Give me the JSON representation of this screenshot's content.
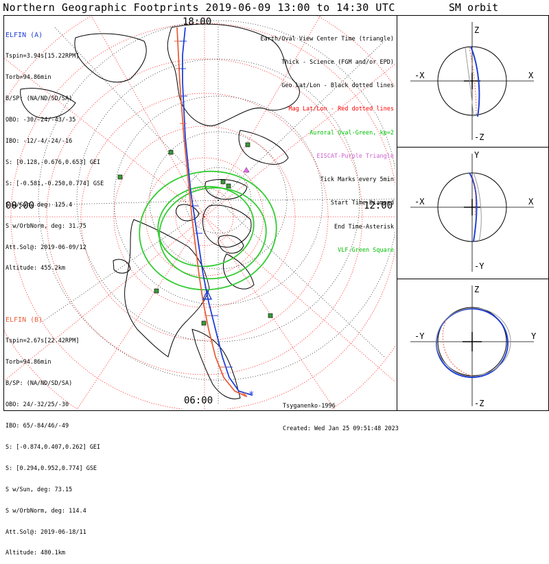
{
  "title": "Northern Geographic Footprints 2019-06-09 13:00 to 14:30 UTC",
  "sm_title": "SM orbit",
  "map": {
    "time_labels": {
      "top": "18:00",
      "left": "00:00",
      "right": "12:00",
      "bottom": "06:00"
    }
  },
  "elfin_a": {
    "name": "ELFIN (A)",
    "color": "#1f3fd6",
    "lines": [
      "Tspin=3.94s[15.22RPM]",
      "Torb=94.86min",
      "B/SP: (NA/ND/SD/SA)",
      "OBO: -30/-24/-43/-35",
      "IBO: -12/-4/-24/-16",
      "S: [0.128,-0.676,0.653] GEI",
      "S: [-0.581,-0.250,0.774] GSE",
      "S w/Sun, deg: 125.4",
      "S w/OrbNorm, deg: 31.75",
      "Att.Sol@: 2019-06-09/12",
      "Altitude: 455.2km"
    ]
  },
  "elfin_b": {
    "name": "ELFIN (B)",
    "color": "#e8603c",
    "lines": [
      "Tspin=2.67s[22.42RPM]",
      "Torb=94.86min",
      "B/SP: (NA/ND/SD/SA)",
      "OBO: 24/-32/25/-30",
      "IBO: 65/-84/46/-49",
      "S: [-0.874,0.407,0.262] GEI",
      "S: [0.294,0.952,0.774] GSE",
      "S w/Sun, deg: 73.15",
      "S w/OrbNorm, deg: 114.4",
      "Att.Sol@: 2019-06-18/11",
      "Altitude: 480.1km"
    ]
  },
  "legend": [
    {
      "text": "Earth/Oval View Center Time (triangle)",
      "color": "#000000"
    },
    {
      "text": "Thick - Science (FGM and/or EPD)",
      "color": "#000000"
    },
    {
      "text": "Geo Lat/Lon - Black dotted lines",
      "color": "#000000"
    },
    {
      "text": "Mag Lat/Lon - Red dotted lines",
      "color": "#ff0000"
    },
    {
      "text": "Auroral Oval-Green, kp=2",
      "color": "#00c000"
    },
    {
      "text": "EISCAT-Purple Triangle",
      "color": "#d060d0"
    },
    {
      "text": "Tick Marks every 5min",
      "color": "#000000"
    },
    {
      "text": "Start Time-Diamond",
      "color": "#000000"
    },
    {
      "text": "End Time-Asterisk",
      "color": "#000000"
    },
    {
      "text": "VLF-Green Square",
      "color": "#00c000"
    }
  ],
  "footer": {
    "model": "Tsyganenko-1996",
    "created": "Created: Wed Jan 25 09:51:48 2023"
  },
  "sm_panels": [
    {
      "id": "xz",
      "top": "Z",
      "bottom": "-Z",
      "left": "-X",
      "right": "X"
    },
    {
      "id": "xy",
      "top": "Y",
      "bottom": "-Y",
      "left": "-X",
      "right": "X"
    },
    {
      "id": "yz",
      "top": "Z",
      "bottom": "-Z",
      "left": "-Y",
      "right": "Y"
    }
  ]
}
